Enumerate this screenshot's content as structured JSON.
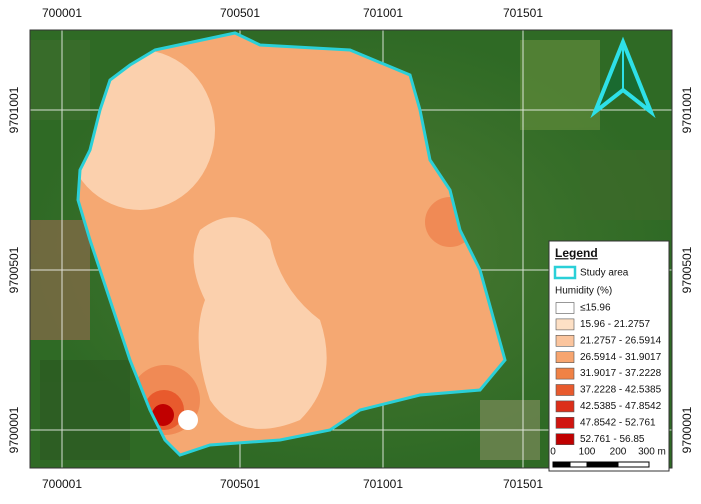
{
  "map": {
    "top_labels": [
      "700001",
      "700501",
      "701001",
      "701501"
    ],
    "bottom_labels": [
      "700001",
      "700501",
      "701001",
      "701501"
    ],
    "left_labels": [
      "9701001",
      "9700501",
      "9700001"
    ],
    "right_labels": [
      "9701001",
      "9700501",
      "9700001"
    ],
    "legend": {
      "title": "Legend",
      "study_area": "Study area",
      "variable": "Humidity (%)",
      "classes": [
        "≤15.96",
        "15.96 - 21.2757",
        "21.2757 - 26.5914",
        "26.5914 - 31.9017",
        "31.9017 - 37.2228",
        "37.2228 - 42.5385",
        "42.5385 - 47.8542",
        "47.8542 - 52.761",
        "52.761 - 56.85"
      ]
    },
    "scale_bar": [
      "0",
      "100",
      "200",
      "300 m"
    ]
  }
}
